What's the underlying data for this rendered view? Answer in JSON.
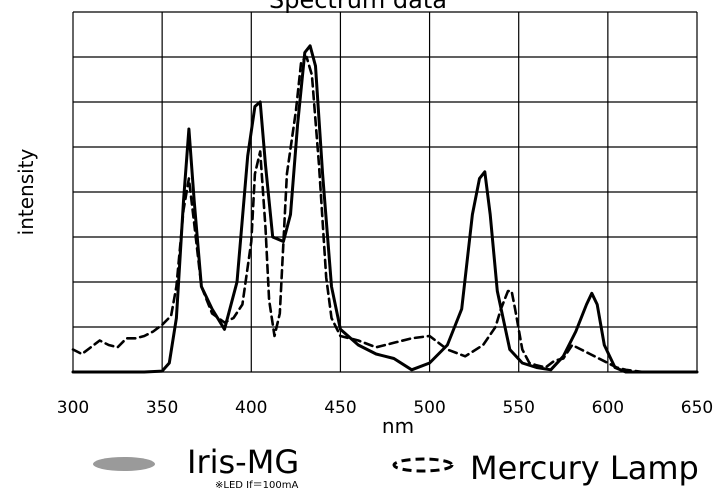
{
  "chart_data": {
    "type": "line",
    "title": "Spectrum data",
    "xlabel": "nm",
    "ylabel": "intensity",
    "xlim": [
      300,
      650
    ],
    "ylim": [
      0,
      8
    ],
    "xticks": [
      300,
      350,
      400,
      450,
      500,
      550,
      600,
      650
    ],
    "grid": true,
    "legend_position": "bottom",
    "series": [
      {
        "name": "Iris-MG",
        "note": "※LED If＝100mA",
        "color": "#000000",
        "line_style": "solid",
        "legend_swatch_color": "#9a9a9a",
        "x": [
          300,
          340,
          350,
          354,
          358,
          362,
          365,
          368,
          372,
          378,
          385,
          392,
          398,
          402,
          405,
          408,
          412,
          418,
          422,
          426,
          430,
          433,
          436,
          440,
          445,
          450,
          460,
          470,
          480,
          490,
          500,
          510,
          518,
          524,
          528,
          531,
          534,
          538,
          545,
          552,
          560,
          568,
          575,
          582,
          588,
          591,
          594,
          598,
          604,
          610,
          620,
          650
        ],
        "y": [
          0,
          0,
          0.02,
          0.2,
          1.2,
          3.8,
          5.4,
          3.8,
          1.9,
          1.4,
          0.95,
          2.0,
          4.8,
          5.9,
          6.0,
          4.6,
          3.0,
          2.9,
          3.5,
          5.5,
          7.1,
          7.25,
          6.8,
          4.4,
          1.9,
          0.95,
          0.6,
          0.4,
          0.3,
          0.05,
          0.2,
          0.6,
          1.4,
          3.5,
          4.3,
          4.45,
          3.5,
          1.8,
          0.5,
          0.2,
          0.1,
          0.05,
          0.35,
          0.9,
          1.5,
          1.75,
          1.5,
          0.6,
          0.1,
          0.0,
          0,
          0
        ]
      },
      {
        "name": "Mercury Lamp",
        "color": "#000000",
        "line_style": "dashed",
        "x": [
          300,
          305,
          310,
          315,
          320,
          325,
          330,
          335,
          340,
          345,
          350,
          355,
          358,
          362,
          365,
          368,
          372,
          378,
          385,
          390,
          395,
          400,
          402,
          405,
          408,
          410,
          413,
          416,
          420,
          425,
          428,
          431,
          434,
          438,
          442,
          445,
          450,
          460,
          470,
          480,
          490,
          500,
          505,
          510,
          520,
          530,
          537,
          540,
          544,
          546,
          548,
          552,
          556,
          560,
          565,
          570,
          575,
          580,
          585,
          590,
          595,
          600,
          605,
          610,
          620,
          650
        ],
        "y": [
          0.5,
          0.4,
          0.55,
          0.7,
          0.6,
          0.55,
          0.75,
          0.75,
          0.8,
          0.9,
          1.05,
          1.25,
          1.9,
          3.6,
          4.3,
          3.3,
          1.9,
          1.3,
          1.1,
          1.2,
          1.5,
          2.9,
          4.4,
          4.9,
          3.2,
          1.6,
          0.8,
          1.3,
          4.4,
          5.8,
          6.9,
          7.0,
          6.6,
          4.6,
          2.1,
          1.2,
          0.8,
          0.7,
          0.55,
          0.65,
          0.75,
          0.8,
          0.65,
          0.5,
          0.35,
          0.6,
          1.0,
          1.4,
          1.8,
          1.8,
          1.4,
          0.5,
          0.2,
          0.15,
          0.1,
          0.25,
          0.3,
          0.6,
          0.5,
          0.4,
          0.3,
          0.2,
          0.1,
          0.05,
          0,
          0
        ]
      }
    ]
  }
}
